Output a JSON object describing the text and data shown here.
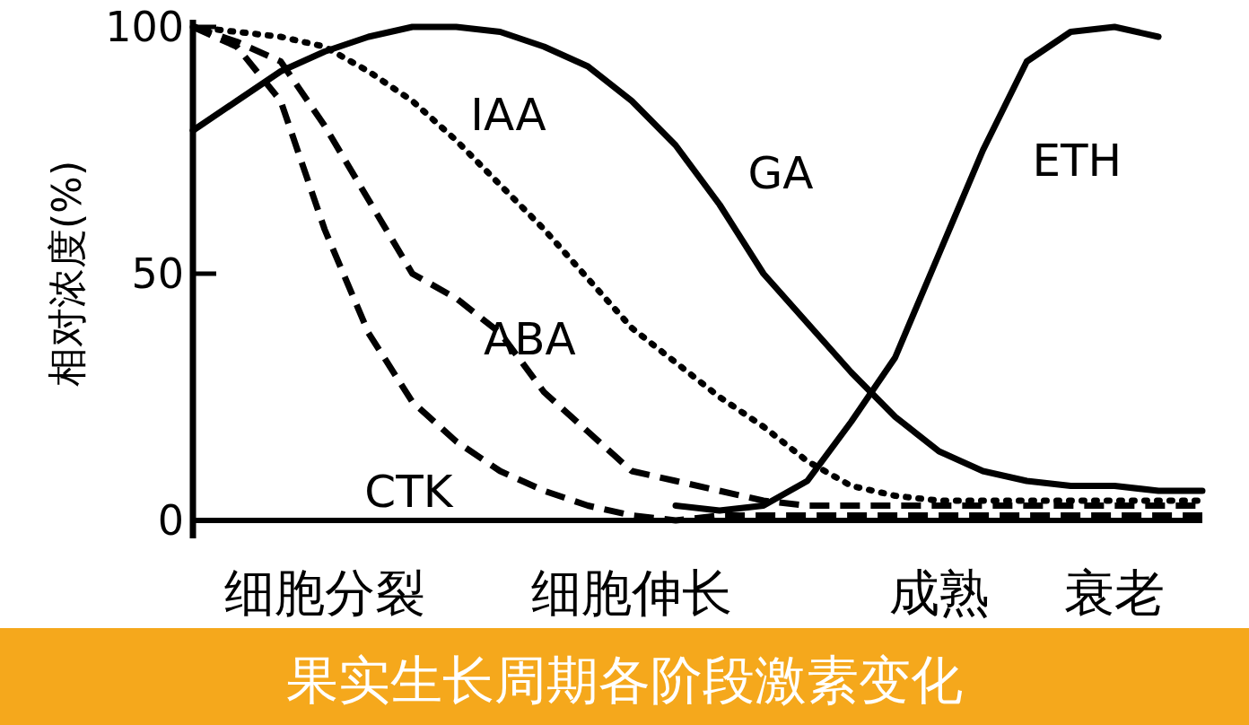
{
  "chart_data": {
    "type": "line",
    "title": "果实生长周期各阶段激素变化",
    "ylabel": "相对浓度(%)",
    "categories": [
      null,
      null,
      null,
      "细胞分裂",
      null,
      null,
      null,
      null,
      null,
      null,
      "细胞伸长",
      null,
      null,
      null,
      null,
      null,
      null,
      "成熟",
      null,
      null,
      null,
      "衰老",
      null,
      null
    ],
    "ylim": [
      0,
      100
    ],
    "yticks": [
      0,
      50,
      100
    ],
    "grid": false,
    "marker": "none",
    "series": [
      {
        "name": "IAA",
        "color": "#000000",
        "line_style": "dotted",
        "values": [
          100,
          99,
          98,
          96,
          91,
          85,
          77,
          68,
          59,
          49,
          39,
          32,
          25,
          19,
          12,
          7,
          5,
          4,
          4,
          4,
          4,
          4,
          4,
          4
        ]
      },
      {
        "name": "GA",
        "color": "#000000",
        "line_style": "solid",
        "values": [
          79,
          85,
          91,
          95,
          98,
          100,
          100,
          99,
          96,
          92,
          85,
          76,
          64,
          50,
          40,
          30,
          21,
          14,
          10,
          8,
          7,
          7,
          6,
          6
        ]
      },
      {
        "name": "ETH",
        "color": "#000000",
        "line_style": "solid",
        "values": [
          null,
          null,
          null,
          null,
          null,
          null,
          null,
          null,
          null,
          null,
          null,
          3,
          2,
          3,
          8,
          20,
          33,
          54,
          75,
          93,
          99,
          100,
          98,
          null
        ]
      },
      {
        "name": "CTK",
        "color": "#000000",
        "line_style": "dashed",
        "values": [
          100,
          96,
          85,
          59,
          38,
          24,
          16,
          10,
          6,
          3,
          1,
          0,
          1,
          1,
          1,
          1,
          1,
          1,
          1,
          1,
          1,
          1,
          1,
          1
        ]
      },
      {
        "name": "ABA",
        "color": "#000000",
        "line_style": "dashed",
        "values": [
          100,
          97,
          93,
          80,
          65,
          50,
          45,
          38,
          26,
          18,
          10,
          8,
          6,
          4,
          3,
          3,
          3,
          3,
          3,
          3,
          3,
          3,
          3,
          3
        ]
      }
    ]
  }
}
